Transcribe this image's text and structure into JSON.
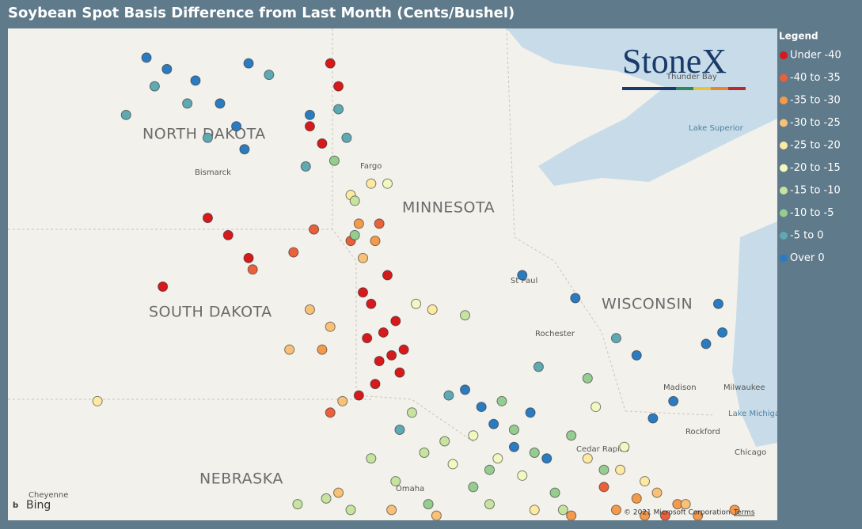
{
  "title": "Soybean Spot Basis Difference from Last Month (Cents/Bushel)",
  "logo": "StoneX",
  "map_labels": {
    "states": [
      "NORTH DAKOTA",
      "MINNESOTA",
      "SOUTH DAKOTA",
      "WISCONSIN",
      "NEBRASKA"
    ],
    "cities": [
      "Bismarck",
      "Fargo",
      "St Paul",
      "Rochester",
      "Madison",
      "Milwaukee",
      "Rockford",
      "Chicago",
      "Cedar Rapids",
      "Omaha",
      "Cheyenne",
      "Thunder Bay"
    ],
    "water": [
      "Lake Superior",
      "Lake Michigan"
    ]
  },
  "attribution": {
    "provider": "Bing",
    "copyright": "© 2021 Microsoft Corporation",
    "terms": "Terms"
  },
  "legend": {
    "title": "Legend",
    "items": [
      {
        "label": "Under -40",
        "color": "#d7191c",
        "points": [
          [
            -96.5,
            44.5
          ],
          [
            -96.2,
            44.0
          ],
          [
            -96.0,
            43.6
          ],
          [
            -95.8,
            43.3
          ],
          [
            -96.6,
            43.9
          ],
          [
            -96.3,
            43.5
          ],
          [
            -95.9,
            44.2
          ],
          [
            -96.1,
            45.0
          ],
          [
            -96.7,
            44.7
          ],
          [
            -96.4,
            43.1
          ],
          [
            -95.7,
            43.7
          ],
          [
            -96.8,
            42.9
          ],
          [
            -100.5,
            46.0
          ],
          [
            -101.6,
            44.8
          ],
          [
            -99.5,
            45.3
          ],
          [
            -100.0,
            45.7
          ],
          [
            -97.5,
            48.7
          ],
          [
            -97.3,
            48.3
          ],
          [
            -98.0,
            47.6
          ],
          [
            -97.7,
            47.3
          ]
        ]
      },
      {
        "label": "-40 to -35",
        "color": "#e9603a",
        "points": [
          [
            -97.9,
            45.8
          ],
          [
            -98.4,
            45.4
          ],
          [
            -97.0,
            45.6
          ],
          [
            -96.3,
            45.9
          ],
          [
            -99.4,
            45.1
          ],
          [
            -97.5,
            42.6
          ],
          [
            -90.8,
            41.3
          ],
          [
            -89.3,
            40.8
          ]
        ]
      },
      {
        "label": "-35 to -30",
        "color": "#f59a4a",
        "points": [
          [
            -96.4,
            45.6
          ],
          [
            -96.8,
            45.9
          ],
          [
            -90.5,
            40.9
          ],
          [
            -89.8,
            40.8
          ],
          [
            -89.0,
            41.0
          ],
          [
            -88.5,
            40.8
          ],
          [
            -87.6,
            40.9
          ],
          [
            -91.6,
            40.8
          ],
          [
            -97.7,
            43.7
          ],
          [
            -90.0,
            41.1
          ]
        ]
      },
      {
        "label": "-30 to -25",
        "color": "#f9c077",
        "points": [
          [
            -98.0,
            44.4
          ],
          [
            -97.5,
            44.1
          ],
          [
            -98.5,
            43.7
          ],
          [
            -96.7,
            45.3
          ],
          [
            -97.3,
            41.2
          ],
          [
            -96.0,
            40.9
          ],
          [
            -94.9,
            40.8
          ],
          [
            -89.5,
            41.2
          ],
          [
            -88.8,
            41.0
          ],
          [
            -97.2,
            42.8
          ]
        ]
      },
      {
        "label": "-25 to -20",
        "color": "#fde9a0",
        "points": [
          [
            -97.0,
            46.4
          ],
          [
            -96.5,
            46.6
          ],
          [
            -91.2,
            41.8
          ],
          [
            -90.4,
            41.6
          ],
          [
            -95.0,
            44.4
          ],
          [
            -103.2,
            42.8
          ],
          [
            -92.5,
            40.9
          ],
          [
            -89.8,
            41.4
          ]
        ]
      },
      {
        "label": "-20 to -15",
        "color": "#f3f7c0",
        "points": [
          [
            -94.0,
            42.2
          ],
          [
            -93.4,
            41.8
          ],
          [
            -92.8,
            41.5
          ],
          [
            -94.5,
            41.7
          ],
          [
            -95.4,
            44.5
          ],
          [
            -96.1,
            46.6
          ],
          [
            -91.0,
            42.7
          ],
          [
            -90.3,
            42.0
          ]
        ]
      },
      {
        "label": "-15 to -10",
        "color": "#c6e3a0",
        "points": [
          [
            -96.5,
            41.8
          ],
          [
            -95.9,
            41.4
          ],
          [
            -95.2,
            41.9
          ],
          [
            -97.6,
            41.1
          ],
          [
            -94.7,
            42.1
          ],
          [
            -97.0,
            40.9
          ],
          [
            -98.3,
            41.0
          ],
          [
            -94.2,
            44.3
          ],
          [
            -96.9,
            46.3
          ],
          [
            -93.6,
            41.0
          ],
          [
            -91.8,
            40.9
          ],
          [
            -95.5,
            42.6
          ]
        ]
      },
      {
        "label": "-10 to -5",
        "color": "#95cc90",
        "points": [
          [
            -93.0,
            42.3
          ],
          [
            -92.5,
            41.9
          ],
          [
            -93.6,
            41.6
          ],
          [
            -92.0,
            41.2
          ],
          [
            -91.6,
            42.2
          ],
          [
            -94.0,
            41.3
          ],
          [
            -97.4,
            47.0
          ],
          [
            -96.9,
            45.7
          ],
          [
            -90.8,
            41.6
          ],
          [
            -93.3,
            42.8
          ],
          [
            -95.1,
            41.0
          ],
          [
            -91.2,
            43.2
          ]
        ]
      },
      {
        "label": "-5 to 0",
        "color": "#5fa9b3",
        "points": [
          [
            -101.8,
            48.3
          ],
          [
            -101.0,
            48.0
          ],
          [
            -100.5,
            47.4
          ],
          [
            -99.0,
            48.5
          ],
          [
            -102.5,
            47.8
          ],
          [
            -97.3,
            47.9
          ],
          [
            -97.1,
            47.4
          ],
          [
            -98.1,
            46.9
          ],
          [
            -95.8,
            42.3
          ],
          [
            -94.6,
            42.9
          ],
          [
            -92.4,
            43.4
          ],
          [
            -90.5,
            43.9
          ]
        ]
      },
      {
        "label": "Over 0",
        "color": "#2b7bc0",
        "points": [
          [
            -102.0,
            48.8
          ],
          [
            -101.5,
            48.6
          ],
          [
            -100.8,
            48.4
          ],
          [
            -99.5,
            48.7
          ],
          [
            -100.2,
            48.0
          ],
          [
            -99.8,
            47.6
          ],
          [
            -99.6,
            47.2
          ],
          [
            -98.0,
            47.8
          ],
          [
            -94.2,
            43.0
          ],
          [
            -93.5,
            42.4
          ],
          [
            -93.0,
            42.0
          ],
          [
            -92.6,
            42.6
          ],
          [
            -93.8,
            42.7
          ],
          [
            -92.2,
            41.8
          ],
          [
            -90.0,
            43.6
          ],
          [
            -89.1,
            42.8
          ],
          [
            -88.3,
            43.8
          ],
          [
            -88.0,
            44.5
          ],
          [
            -87.9,
            44.0
          ],
          [
            -89.6,
            42.5
          ],
          [
            -92.8,
            45.0
          ],
          [
            -91.5,
            44.6
          ]
        ]
      }
    ]
  }
}
